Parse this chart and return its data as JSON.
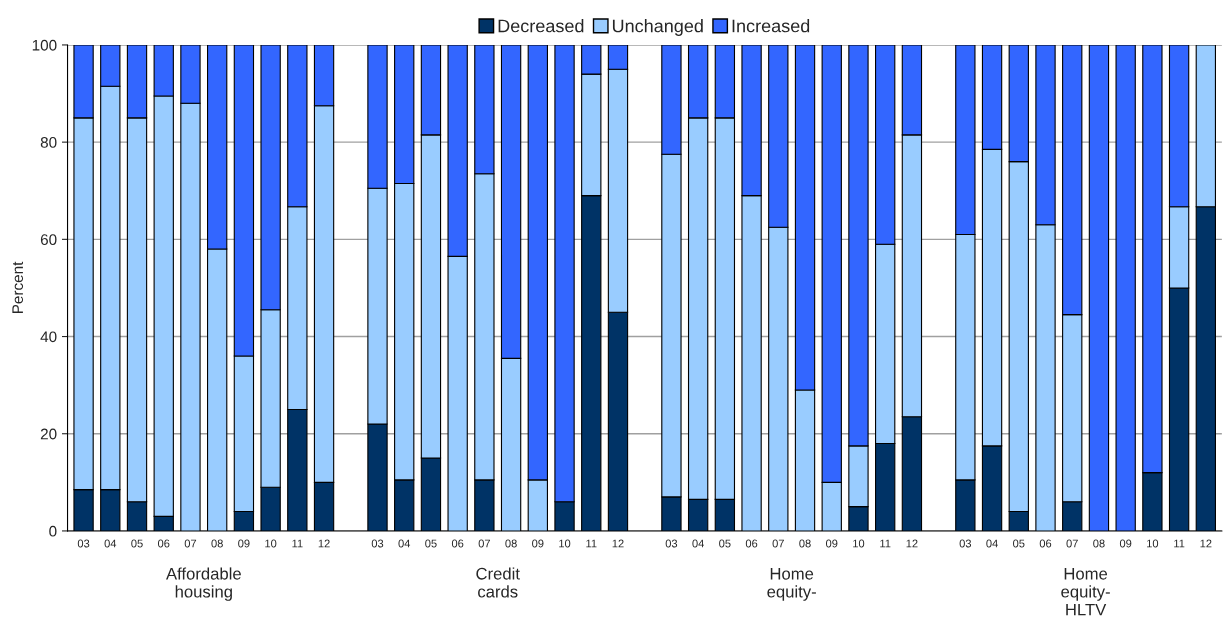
{
  "chart_data": {
    "type": "bar",
    "stacked": true,
    "ylabel": "Percent",
    "categories": [
      "03",
      "04",
      "05",
      "06",
      "07",
      "08",
      "09",
      "10",
      "11",
      "12",
      null,
      "03",
      "04",
      "05",
      "06",
      "07",
      "08",
      "09",
      "10",
      "11",
      "12",
      null,
      "03",
      "04",
      "05",
      "06",
      "07",
      "08",
      "09",
      "10",
      "11",
      "12",
      null,
      "03",
      "04",
      "05",
      "06",
      "07",
      "08",
      "09",
      "10",
      "11",
      "12"
    ],
    "series": [
      {
        "name": "Decreased",
        "color": "#003366",
        "values": [
          8.5,
          8.5,
          6,
          3,
          0,
          0,
          4,
          9,
          25,
          10,
          null,
          22,
          10.5,
          15,
          0,
          10.5,
          0,
          0,
          6,
          69,
          45,
          null,
          7,
          6.5,
          6.5,
          0,
          0,
          0,
          0,
          5,
          18,
          23.5,
          null,
          10.5,
          17.5,
          4,
          0,
          6,
          0,
          0,
          12,
          50,
          66.7
        ]
      },
      {
        "name": "Unchanged",
        "color": "#99ccff",
        "values": [
          76.5,
          83,
          79,
          86.5,
          88,
          58,
          32,
          36.5,
          41.7,
          77.5,
          null,
          48.5,
          61,
          66.5,
          56.5,
          63,
          35.5,
          10.5,
          0,
          25,
          50,
          null,
          70.5,
          78.5,
          78.5,
          69,
          62.5,
          29,
          10,
          12.5,
          41,
          58,
          null,
          50.5,
          61,
          72,
          63,
          38.5,
          0,
          0,
          0,
          16.7,
          33.3
        ]
      },
      {
        "name": "Increased",
        "color": "#3366ff",
        "values": [
          15,
          8.5,
          15,
          10.5,
          12,
          42,
          64,
          54.5,
          33.3,
          12.5,
          null,
          29.5,
          28.5,
          18.5,
          43.5,
          26.5,
          64.5,
          89.5,
          94,
          6,
          5,
          null,
          22.5,
          15,
          15,
          31,
          37.5,
          71,
          90,
          82.5,
          41,
          18.5,
          null,
          39,
          21.5,
          24,
          37,
          55.5,
          100,
          100,
          88,
          33.3,
          0
        ]
      }
    ],
    "annotations": [
      "Affordable\nhousing",
      "Credit\ncards",
      "Home\nequity-",
      "Home\nequity-\nHLTV"
    ],
    "ylim": [
      0,
      100
    ],
    "yticks": [
      0,
      20,
      40,
      60,
      80,
      100
    ],
    "grid": "y",
    "legend": "top"
  }
}
